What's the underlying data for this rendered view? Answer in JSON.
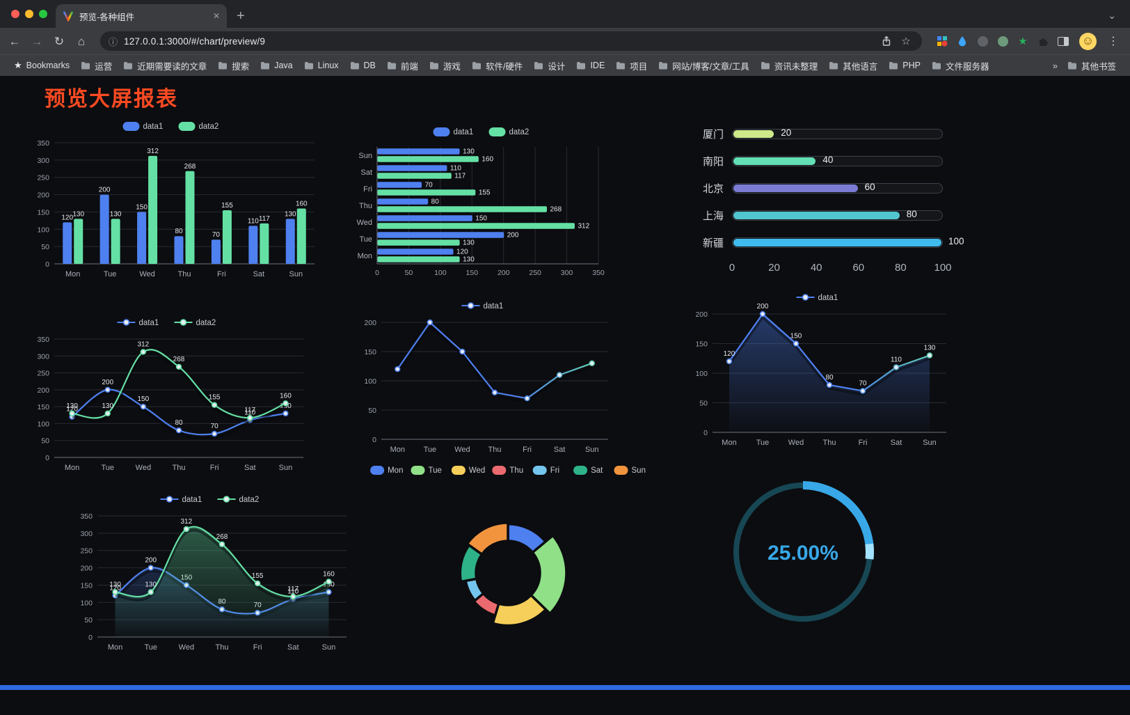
{
  "browser": {
    "tab_title": "预览-各种组件",
    "url": "127.0.0.1:3000/#/chart/preview/9",
    "bookmarks_root": "Bookmarks",
    "bookmarks": [
      "运营",
      "近期需要读的文章",
      "搜索",
      "Java",
      "Linux",
      "DB",
      "前端",
      "游戏",
      "软件/硬件",
      "设计",
      "IDE",
      "项目",
      "网站/博客/文章/工具",
      "资讯未整理",
      "其他语言",
      "PHP",
      "文件服务器"
    ],
    "overflow_chevron": "»",
    "other_bookmarks": "其他书签",
    "icons": {
      "back": "←",
      "forward": "→",
      "reload": "↻",
      "home": "⌂",
      "info": "ⓘ",
      "star": "☆",
      "menu": "⋮",
      "chevron_down": "⌄",
      "new_tab": "+",
      "close_tab": "✕",
      "bookmarks_star": "★",
      "avatar": "☺"
    }
  },
  "page": {
    "title": "预览大屏报表",
    "title_color": "#fb4a22",
    "accent_bar_color": "#2e6ae0",
    "background": "#0c0d10"
  },
  "chart_data": [
    {
      "id": "bar-grouped",
      "type": "bar",
      "orientation": "vertical",
      "categories": [
        "Mon",
        "Tue",
        "Wed",
        "Thu",
        "Fri",
        "Sat",
        "Sun"
      ],
      "series": [
        {
          "name": "data1",
          "color": "#4e80f0",
          "values": [
            120,
            200,
            150,
            80,
            70,
            110,
            130
          ]
        },
        {
          "name": "data2",
          "color": "#65e0a5",
          "values": [
            130,
            130,
            312,
            268,
            155,
            117,
            160
          ]
        }
      ],
      "ylim": [
        0,
        350
      ],
      "y_ticks": [
        0,
        50,
        100,
        150,
        200,
        250,
        300,
        350
      ],
      "value_labels": true,
      "legend_position": "top",
      "grid": true
    },
    {
      "id": "bar-horizontal",
      "type": "bar",
      "orientation": "horizontal",
      "categories": [
        "Mon",
        "Tue",
        "Wed",
        "Thu",
        "Fri",
        "Sat",
        "Sun"
      ],
      "display_order_top_to_bottom": [
        "Sun",
        "Sat",
        "Fri",
        "Thu",
        "Wed",
        "Tue",
        "Mon"
      ],
      "series": [
        {
          "name": "data1",
          "color": "#4e80f0",
          "values": [
            120,
            200,
            150,
            80,
            70,
            110,
            130
          ]
        },
        {
          "name": "data2",
          "color": "#65e0a5",
          "values": [
            130,
            130,
            312,
            268,
            155,
            117,
            160
          ]
        }
      ],
      "xlim": [
        0,
        350
      ],
      "x_ticks": [
        0,
        50,
        100,
        150,
        200,
        250,
        300,
        350
      ],
      "value_labels": true,
      "legend_position": "top",
      "grid": true
    },
    {
      "id": "progress-capsules",
      "type": "bar",
      "variant": "progress",
      "max": 100,
      "x_ticks": [
        0,
        20,
        40,
        60,
        80,
        100
      ],
      "rows": [
        {
          "label": "厦门",
          "value": 20,
          "color": "#cde98a"
        },
        {
          "label": "南阳",
          "value": 40,
          "color": "#63dfb4"
        },
        {
          "label": "北京",
          "value": 60,
          "color": "#7b7bd4"
        },
        {
          "label": "上海",
          "value": 80,
          "color": "#52c6cf"
        },
        {
          "label": "新疆",
          "value": 100,
          "color": "#3fbbee"
        }
      ]
    },
    {
      "id": "line-smooth-two",
      "type": "line",
      "smooth": true,
      "categories": [
        "Mon",
        "Tue",
        "Wed",
        "Thu",
        "Fri",
        "Sat",
        "Sun"
      ],
      "series": [
        {
          "name": "data1",
          "color": "#4e80f0",
          "values": [
            120,
            200,
            150,
            80,
            70,
            110,
            130
          ]
        },
        {
          "name": "data2",
          "color": "#65e0a5",
          "values": [
            130,
            130,
            312,
            268,
            155,
            117,
            160
          ]
        }
      ],
      "ylim": [
        0,
        350
      ],
      "y_ticks": [
        0,
        50,
        100,
        150,
        200,
        250,
        300,
        350
      ],
      "value_labels": true,
      "legend_position": "top",
      "grid": true
    },
    {
      "id": "line-gradient",
      "type": "line",
      "smooth": false,
      "categories": [
        "Mon",
        "Tue",
        "Wed",
        "Thu",
        "Fri",
        "Sat",
        "Sun"
      ],
      "series": [
        {
          "name": "data1",
          "gradient": [
            "#4e80f0",
            "#65e0a5"
          ],
          "values": [
            120,
            200,
            150,
            80,
            70,
            110,
            130
          ]
        }
      ],
      "ylim": [
        0,
        200
      ],
      "y_ticks": [
        0,
        50,
        100,
        150,
        200
      ],
      "value_labels": false,
      "legend_position": "top",
      "grid": true
    },
    {
      "id": "line-gradient-area",
      "type": "line",
      "smooth": false,
      "categories": [
        "Mon",
        "Tue",
        "Wed",
        "Thu",
        "Fri",
        "Sat",
        "Sun"
      ],
      "series": [
        {
          "name": "data1",
          "gradient": [
            "#4e80f0",
            "#65e0a5"
          ],
          "area": true,
          "values": [
            120,
            200,
            150,
            80,
            70,
            110,
            130
          ]
        }
      ],
      "ylim": [
        0,
        200
      ],
      "y_ticks": [
        0,
        50,
        100,
        150,
        200
      ],
      "value_labels": true,
      "legend_position": "top",
      "grid": true
    },
    {
      "id": "line-smooth-two-area",
      "type": "line",
      "smooth": true,
      "categories": [
        "Mon",
        "Tue",
        "Wed",
        "Thu",
        "Fri",
        "Sat",
        "Sun"
      ],
      "series": [
        {
          "name": "data1",
          "color": "#4e80f0",
          "area": true,
          "values": [
            120,
            200,
            150,
            80,
            70,
            110,
            130
          ]
        },
        {
          "name": "data2",
          "color": "#65e0a5",
          "area": true,
          "values": [
            130,
            130,
            312,
            268,
            155,
            117,
            160
          ]
        }
      ],
      "ylim": [
        0,
        350
      ],
      "y_ticks": [
        0,
        50,
        100,
        150,
        200,
        250,
        300,
        350
      ],
      "value_labels": true,
      "legend_position": "top",
      "grid": true
    },
    {
      "id": "doughnut-rose",
      "type": "pie",
      "variant": "rose-doughnut",
      "legend_position": "top",
      "items": [
        {
          "name": "Mon",
          "value": 120,
          "color": "#4e80f0"
        },
        {
          "name": "Tue",
          "value": 200,
          "color": "#8fe087"
        },
        {
          "name": "Wed",
          "value": 150,
          "color": "#f6cf5a"
        },
        {
          "name": "Thu",
          "value": 80,
          "color": "#eb6a6f"
        },
        {
          "name": "Fri",
          "value": 70,
          "color": "#74c5ee"
        },
        {
          "name": "Sat",
          "value": 110,
          "color": "#2eb388"
        },
        {
          "name": "Sun",
          "value": 130,
          "color": "#f2943e"
        }
      ]
    },
    {
      "id": "gauge-percent",
      "type": "pie",
      "variant": "gauge",
      "value": 25,
      "display": "25.00%",
      "color": "#38a8e8",
      "cap_color": "#a3e2ff",
      "track_color": "#174754"
    }
  ]
}
